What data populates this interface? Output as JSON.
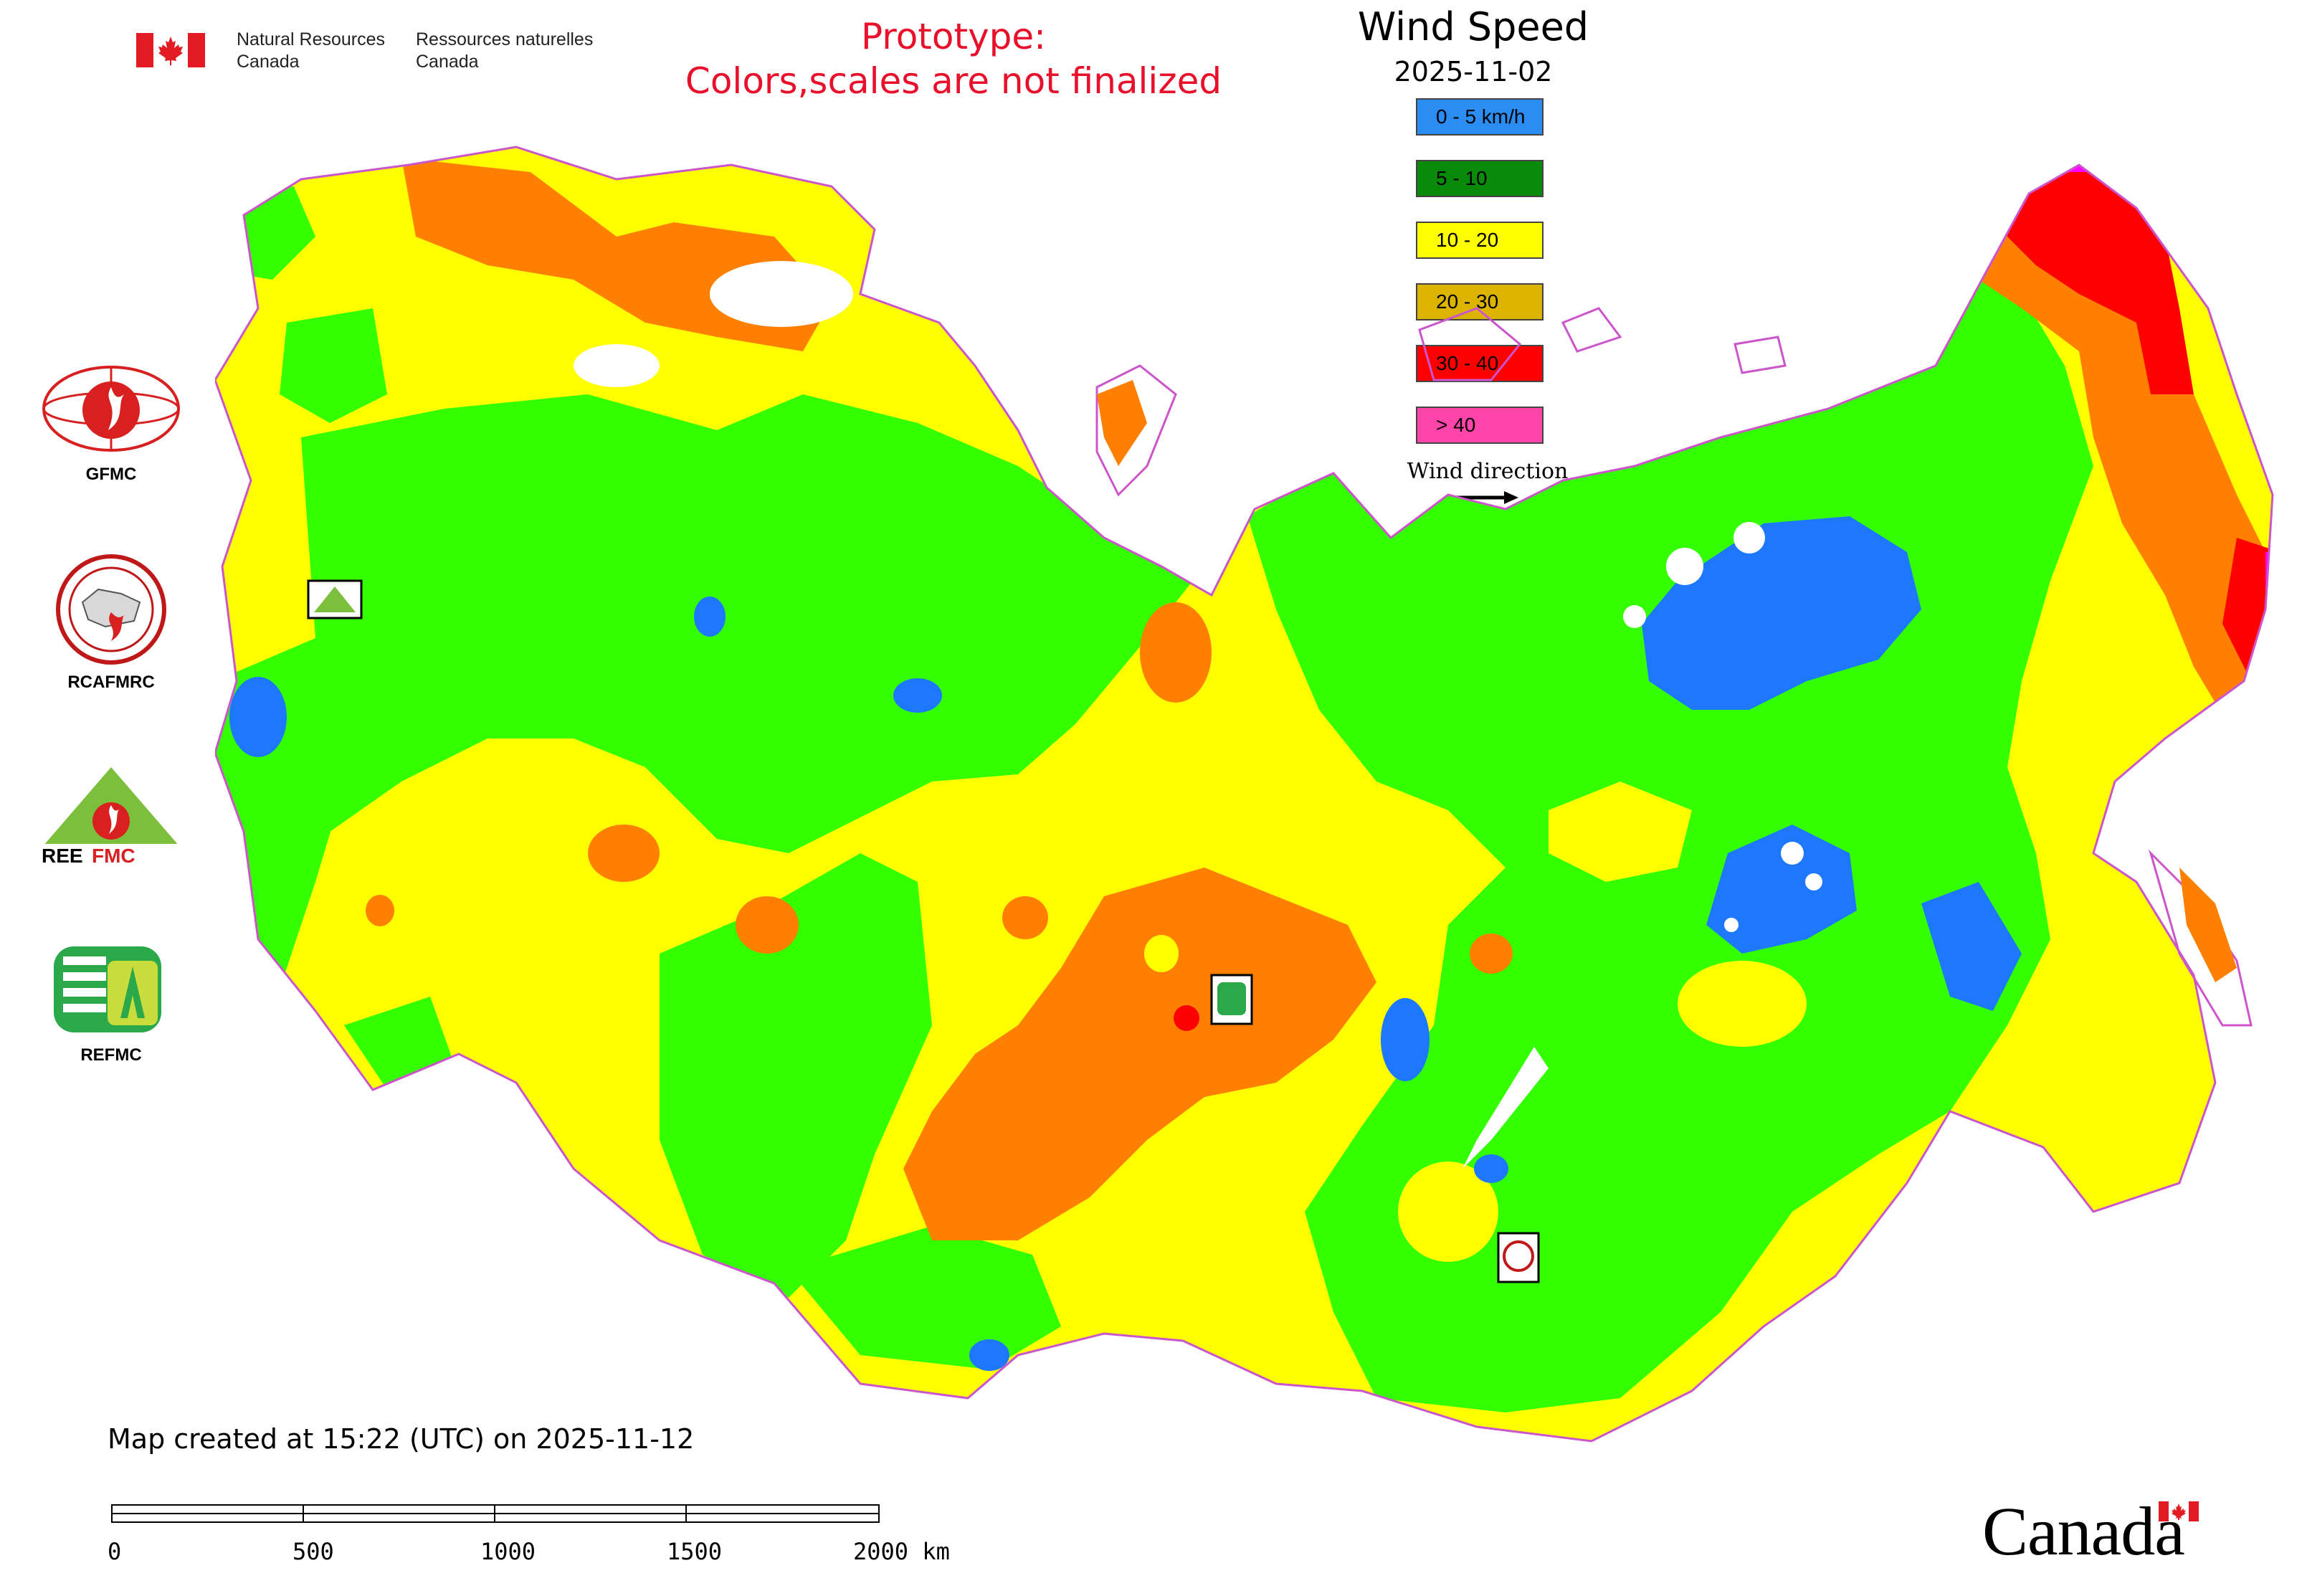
{
  "header": {
    "dept_en": [
      "Natural Resources",
      "Canada"
    ],
    "dept_fr": [
      "Ressources naturelles",
      "Canada"
    ],
    "prototype_lines": [
      "Prototype:",
      "Colors,scales are not finalized"
    ]
  },
  "legend": {
    "title": "Wind Speed",
    "date": "2025-11-02",
    "items": [
      {
        "label": "0 - 5 km/h",
        "color": "#2b8cf2"
      },
      {
        "label": "5 - 10",
        "color": "#0a8a0a"
      },
      {
        "label": "10 - 20",
        "color": "#ffff00"
      },
      {
        "label": "20 - 30",
        "color": "#dcb400"
      },
      {
        "label": "30 - 40",
        "color": "#ff0000"
      },
      {
        "label": "> 40",
        "color": "#ff44aa"
      }
    ],
    "wind_direction_label": "Wind direction"
  },
  "logos": [
    {
      "caption": "GFMC"
    },
    {
      "caption": "RCAFMRC"
    },
    {
      "caption": "REEFMC"
    },
    {
      "caption": "REFMC"
    }
  ],
  "map_colors": {
    "calm": "#1e78ff",
    "light": "#33ff00",
    "moderate": "#ffff00",
    "strong": "#ff8000",
    "very_strong": "#ff0000",
    "extreme": "#ff00ff",
    "border": "#cc55cc"
  },
  "footer": {
    "created": "Map created at 15:22 (UTC) on 2025-11-12",
    "scale_ticks": [
      "0",
      "500",
      "1000",
      "1500",
      "2000 km"
    ],
    "wordmark": "Canada"
  }
}
